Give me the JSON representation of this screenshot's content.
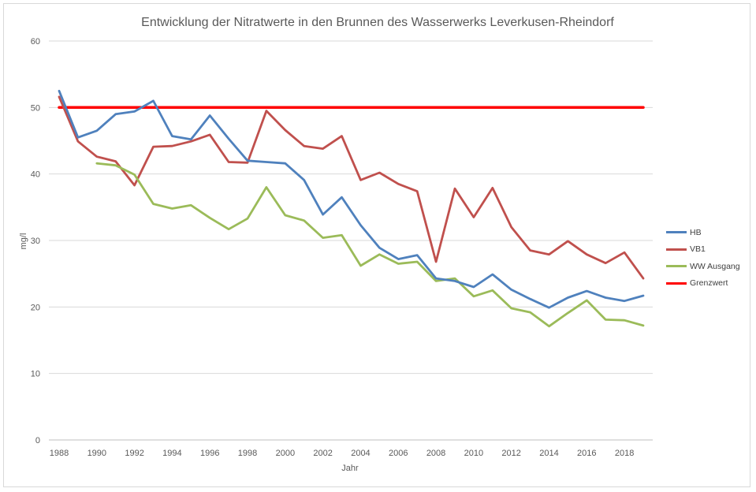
{
  "chart_data": {
    "type": "line",
    "title": "Entwicklung der Nitratwerte in den Brunnen des Wasserwerks Leverkusen-Rheindorf",
    "xlabel": "Jahr",
    "ylabel": "mg/l",
    "xlim": [
      1988,
      2019
    ],
    "ylim": [
      0,
      60
    ],
    "yticks": [
      0,
      10,
      20,
      30,
      40,
      50,
      60
    ],
    "xticks": [
      1988,
      1990,
      1992,
      1994,
      1996,
      1998,
      2000,
      2002,
      2004,
      2006,
      2008,
      2010,
      2012,
      2014,
      2016,
      2018
    ],
    "grid": true,
    "legend_position": "right",
    "x": [
      1988,
      1989,
      1990,
      1991,
      1992,
      1993,
      1994,
      1995,
      1996,
      1997,
      1998,
      1999,
      2000,
      2001,
      2002,
      2003,
      2004,
      2005,
      2006,
      2007,
      2008,
      2009,
      2010,
      2011,
      2012,
      2013,
      2014,
      2015,
      2016,
      2017,
      2018,
      2019
    ],
    "series": [
      {
        "name": "HB",
        "color": "#4f81bd",
        "values": [
          52.5,
          45.5,
          46.5,
          49,
          49.4,
          51,
          45.7,
          45.2,
          48.8,
          45.3,
          42,
          41.8,
          41.6,
          39.1,
          33.9,
          36.5,
          32.3,
          28.9,
          27.2,
          27.8,
          24.3,
          23.9,
          23,
          24.9,
          22.6,
          21.2,
          19.9,
          21.4,
          22.4,
          21.4,
          20.9,
          21.7
        ]
      },
      {
        "name": "VB1",
        "color": "#c0504d",
        "values": [
          51.6,
          44.9,
          42.6,
          41.9,
          38.3,
          44.1,
          44.2,
          44.9,
          45.9,
          41.8,
          41.7,
          49.5,
          46.6,
          44.2,
          43.8,
          45.7,
          39.1,
          40.2,
          38.5,
          37.4,
          26.8,
          37.8,
          33.5,
          37.9,
          32,
          28.5,
          27.9,
          29.9,
          27.9,
          26.6,
          28.2,
          24.3
        ]
      },
      {
        "name": "WW Ausgang",
        "color": "#9bbb59",
        "values": [
          null,
          null,
          41.6,
          41.3,
          39.9,
          35.5,
          34.8,
          35.3,
          33.4,
          31.7,
          33.3,
          38,
          33.8,
          33,
          30.4,
          30.8,
          26.2,
          27.9,
          26.5,
          26.8,
          23.9,
          24.3,
          21.6,
          22.5,
          19.8,
          19.2,
          17.1,
          19.1,
          21,
          18.1,
          18,
          17.2
        ]
      },
      {
        "name": "Grenzwert",
        "color": "#ff0000",
        "values": [
          50,
          50,
          50,
          50,
          50,
          50,
          50,
          50,
          50,
          50,
          50,
          50,
          50,
          50,
          50,
          50,
          50,
          50,
          50,
          50,
          50,
          50,
          50,
          50,
          50,
          50,
          50,
          50,
          50,
          50,
          50,
          50
        ]
      }
    ]
  }
}
